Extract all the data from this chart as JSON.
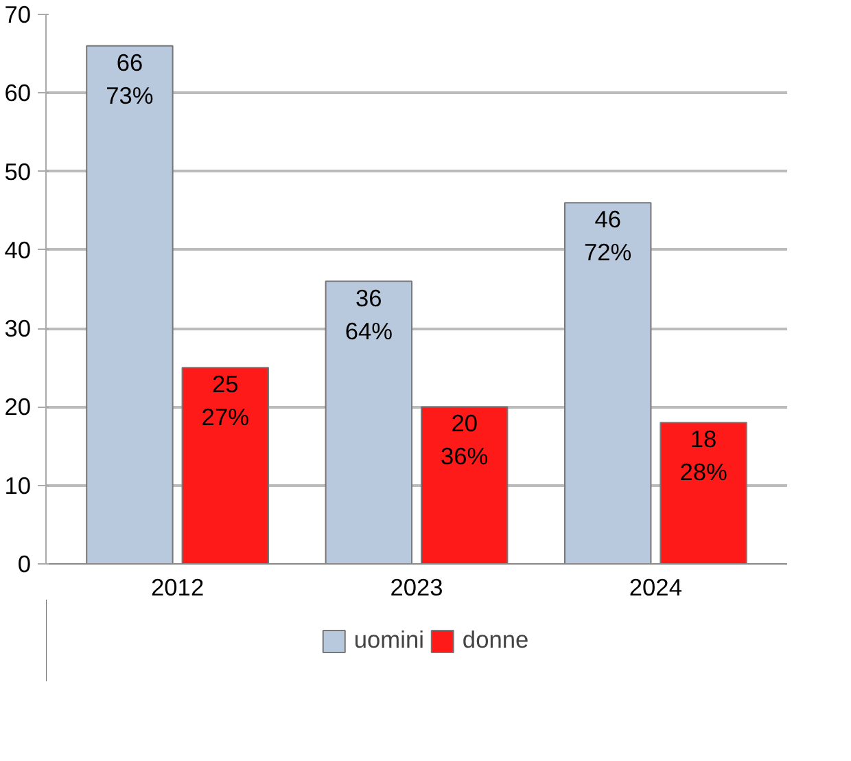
{
  "chart_data": {
    "type": "bar",
    "categories": [
      "2012",
      "2023",
      "2024"
    ],
    "series": [
      {
        "name": "uomini",
        "color": "#b8c9de",
        "values": [
          66,
          36,
          46
        ],
        "value_labels": [
          "66\n73%",
          "36\n64%",
          "46\n72%"
        ]
      },
      {
        "name": "donne",
        "color": "#ff1a1a",
        "values": [
          25,
          20,
          18
        ],
        "value_labels": [
          "25\n27%",
          "20\n36%",
          "18\n28%"
        ]
      }
    ],
    "ylim": [
      0,
      70
    ],
    "yticks": [
      0,
      10,
      20,
      30,
      40,
      50,
      60,
      70
    ],
    "grid": "y",
    "legend": "bottom"
  }
}
